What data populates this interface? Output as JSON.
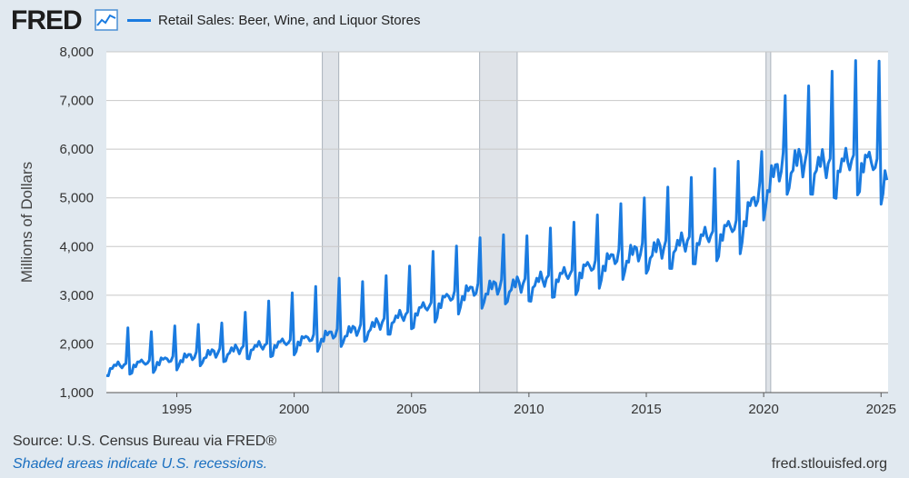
{
  "brand": {
    "name": "FRED"
  },
  "footer": {
    "source": "Source: U.S. Census Bureau via FRED®",
    "recession_note": "Shaded areas indicate U.S. recessions.",
    "site": "fred.stlouisfed.org"
  },
  "colors": {
    "background": "#e1e9f0",
    "plot_background": "#ffffff",
    "line": "#1a7be0",
    "recession": "#dfe3e8",
    "grid": "#c8c8c8"
  },
  "chart_data": {
    "type": "line",
    "title": "",
    "ylabel": "Millions of Dollars",
    "xlabel": "",
    "xlim": [
      1992.0,
      2025.3
    ],
    "ylim": [
      1000,
      8000
    ],
    "y_ticks": [
      "1,000",
      "2,000",
      "3,000",
      "4,000",
      "5,000",
      "6,000",
      "7,000",
      "8,000"
    ],
    "y_tick_values": [
      1000,
      2000,
      3000,
      4000,
      5000,
      6000,
      7000,
      8000
    ],
    "x_ticks": [
      "1995",
      "2000",
      "2005",
      "2010",
      "2015",
      "2020",
      "2025"
    ],
    "x_tick_values": [
      1995,
      2000,
      2005,
      2010,
      2015,
      2020,
      2025
    ],
    "grid": true,
    "legend_position": "top-left",
    "recessions": [
      {
        "start": 2001.2,
        "end": 2001.9
      },
      {
        "start": 2007.9,
        "end": 2009.5
      },
      {
        "start": 2020.1,
        "end": 2020.3
      }
    ],
    "series": [
      {
        "name": "Retail Sales: Beer, Wine, and Liquor Stores",
        "frequency": "monthly",
        "start": "1992-01",
        "yearly_trend": [
          [
            1992,
            1480
          ],
          [
            1995,
            1650
          ],
          [
            1998,
            1860
          ],
          [
            2000,
            2000
          ],
          [
            2003,
            2250
          ],
          [
            2005,
            2560
          ],
          [
            2007,
            2950
          ],
          [
            2008,
            3050
          ],
          [
            2009,
            3100
          ],
          [
            2010,
            3150
          ],
          [
            2012,
            3380
          ],
          [
            2014,
            3720
          ],
          [
            2016,
            3880
          ],
          [
            2018,
            4150
          ],
          [
            2019,
            4350
          ],
          [
            2020,
            5100
          ],
          [
            2021,
            5600
          ],
          [
            2022,
            5550
          ],
          [
            2023,
            5500
          ],
          [
            2024,
            5650
          ],
          [
            2025,
            5500
          ]
        ],
        "december_peaks": [
          [
            1992,
            2330
          ],
          [
            1993,
            2250
          ],
          [
            1994,
            2370
          ],
          [
            1995,
            2400
          ],
          [
            1996,
            2430
          ],
          [
            1997,
            2650
          ],
          [
            1998,
            2880
          ],
          [
            1999,
            3050
          ],
          [
            2000,
            3180
          ],
          [
            2001,
            3350
          ],
          [
            2002,
            3280
          ],
          [
            2003,
            3400
          ],
          [
            2004,
            3600
          ],
          [
            2005,
            3900
          ],
          [
            2006,
            4010
          ],
          [
            2007,
            4180
          ],
          [
            2008,
            4240
          ],
          [
            2009,
            4220
          ],
          [
            2010,
            4380
          ],
          [
            2011,
            4500
          ],
          [
            2012,
            4650
          ],
          [
            2013,
            4880
          ],
          [
            2014,
            5000
          ],
          [
            2015,
            5220
          ],
          [
            2016,
            5420
          ],
          [
            2017,
            5600
          ],
          [
            2018,
            5750
          ],
          [
            2019,
            5950
          ],
          [
            2020,
            7100
          ],
          [
            2021,
            7300
          ],
          [
            2022,
            7600
          ],
          [
            2023,
            7820
          ],
          [
            2024,
            7810
          ]
        ]
      }
    ]
  }
}
